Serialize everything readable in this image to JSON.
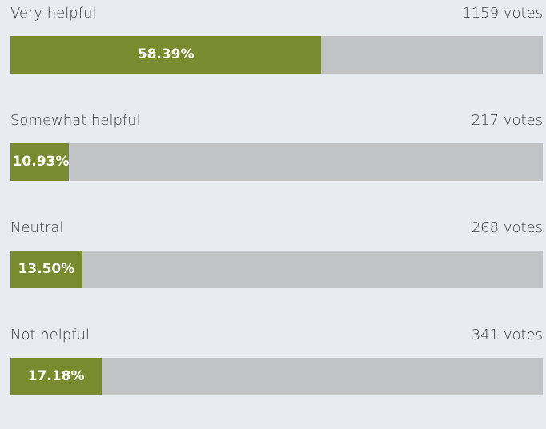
{
  "poll": {
    "options": [
      {
        "label": "Very helpful",
        "votes": "1159 votes",
        "percent": 58.39,
        "percent_label": "58.39%"
      },
      {
        "label": "Somewhat helpful",
        "votes": "217 votes",
        "percent": 10.93,
        "percent_label": "10.93%"
      },
      {
        "label": "Neutral",
        "votes": "268 votes",
        "percent": 13.5,
        "percent_label": "13.50%"
      },
      {
        "label": "Not helpful",
        "votes": "341 votes",
        "percent": 17.18,
        "percent_label": "17.18%"
      }
    ]
  }
}
